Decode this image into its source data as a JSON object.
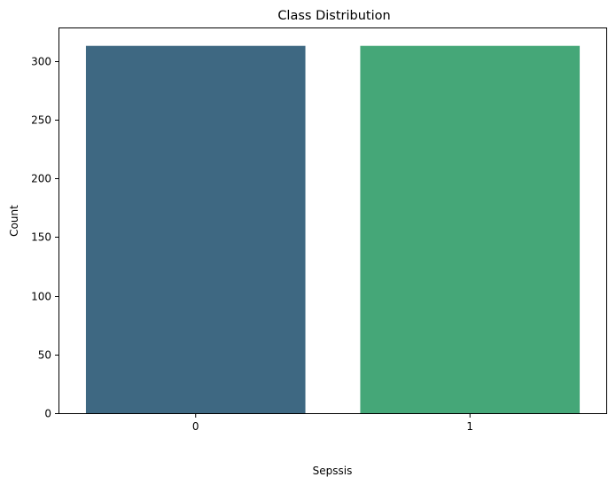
{
  "chart_data": {
    "type": "bar",
    "title": "Class Distribution",
    "xlabel": "Sepssis",
    "ylabel": "Count",
    "categories": [
      "0",
      "1"
    ],
    "values": [
      313,
      313
    ],
    "ylim": [
      0,
      328.65
    ],
    "yticks": [
      0,
      50,
      100,
      150,
      200,
      250,
      300
    ],
    "grid": false,
    "colors": [
      "#3e6882",
      "#45a778"
    ]
  }
}
